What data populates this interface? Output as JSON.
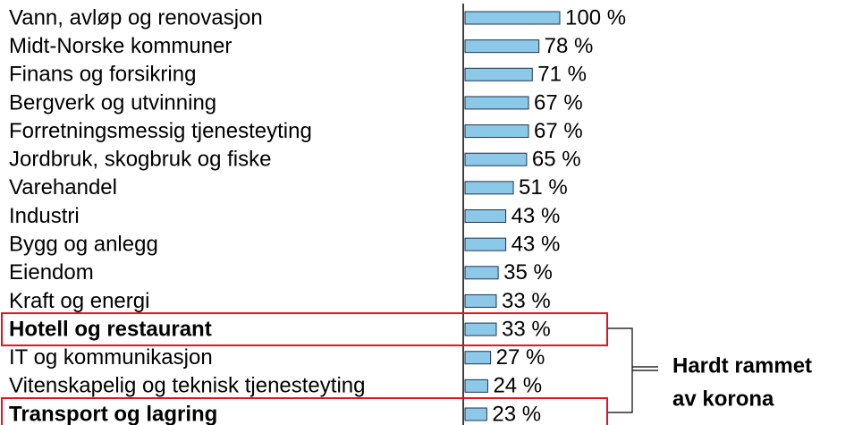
{
  "chart_data": {
    "type": "barh",
    "categories": [
      "Vann, avløp og renovasjon",
      "Midt-Norske kommuner",
      "Finans og forsikring",
      "Bergverk og utvinning",
      "Forretningsmessig tjenesteyting",
      "Jordbruk, skogbruk og fiske",
      "Varehandel",
      "Industri",
      "Bygg og anlegg",
      "Eiendom",
      "Kraft og energi",
      "Hotell og restaurant",
      "IT og kommunikasjon",
      "Vitenskapelig og teknisk tjenesteyting",
      "Transport og lagring"
    ],
    "values": [
      100,
      78,
      71,
      67,
      67,
      65,
      51,
      43,
      43,
      35,
      33,
      33,
      27,
      24,
      23
    ],
    "value_labels": [
      "100 %",
      "78 %",
      "71 %",
      "67 %",
      "67 %",
      "65 %",
      "51 %",
      "43 %",
      "43 %",
      "35 %",
      "33 %",
      "33 %",
      "27 %",
      "24 %",
      "23 %"
    ],
    "color": "#8cc8e8",
    "xlim": [
      0,
      100
    ],
    "highlighted": [
      11,
      14
    ],
    "annotation": [
      "Hardt rammet",
      "av korona"
    ]
  }
}
